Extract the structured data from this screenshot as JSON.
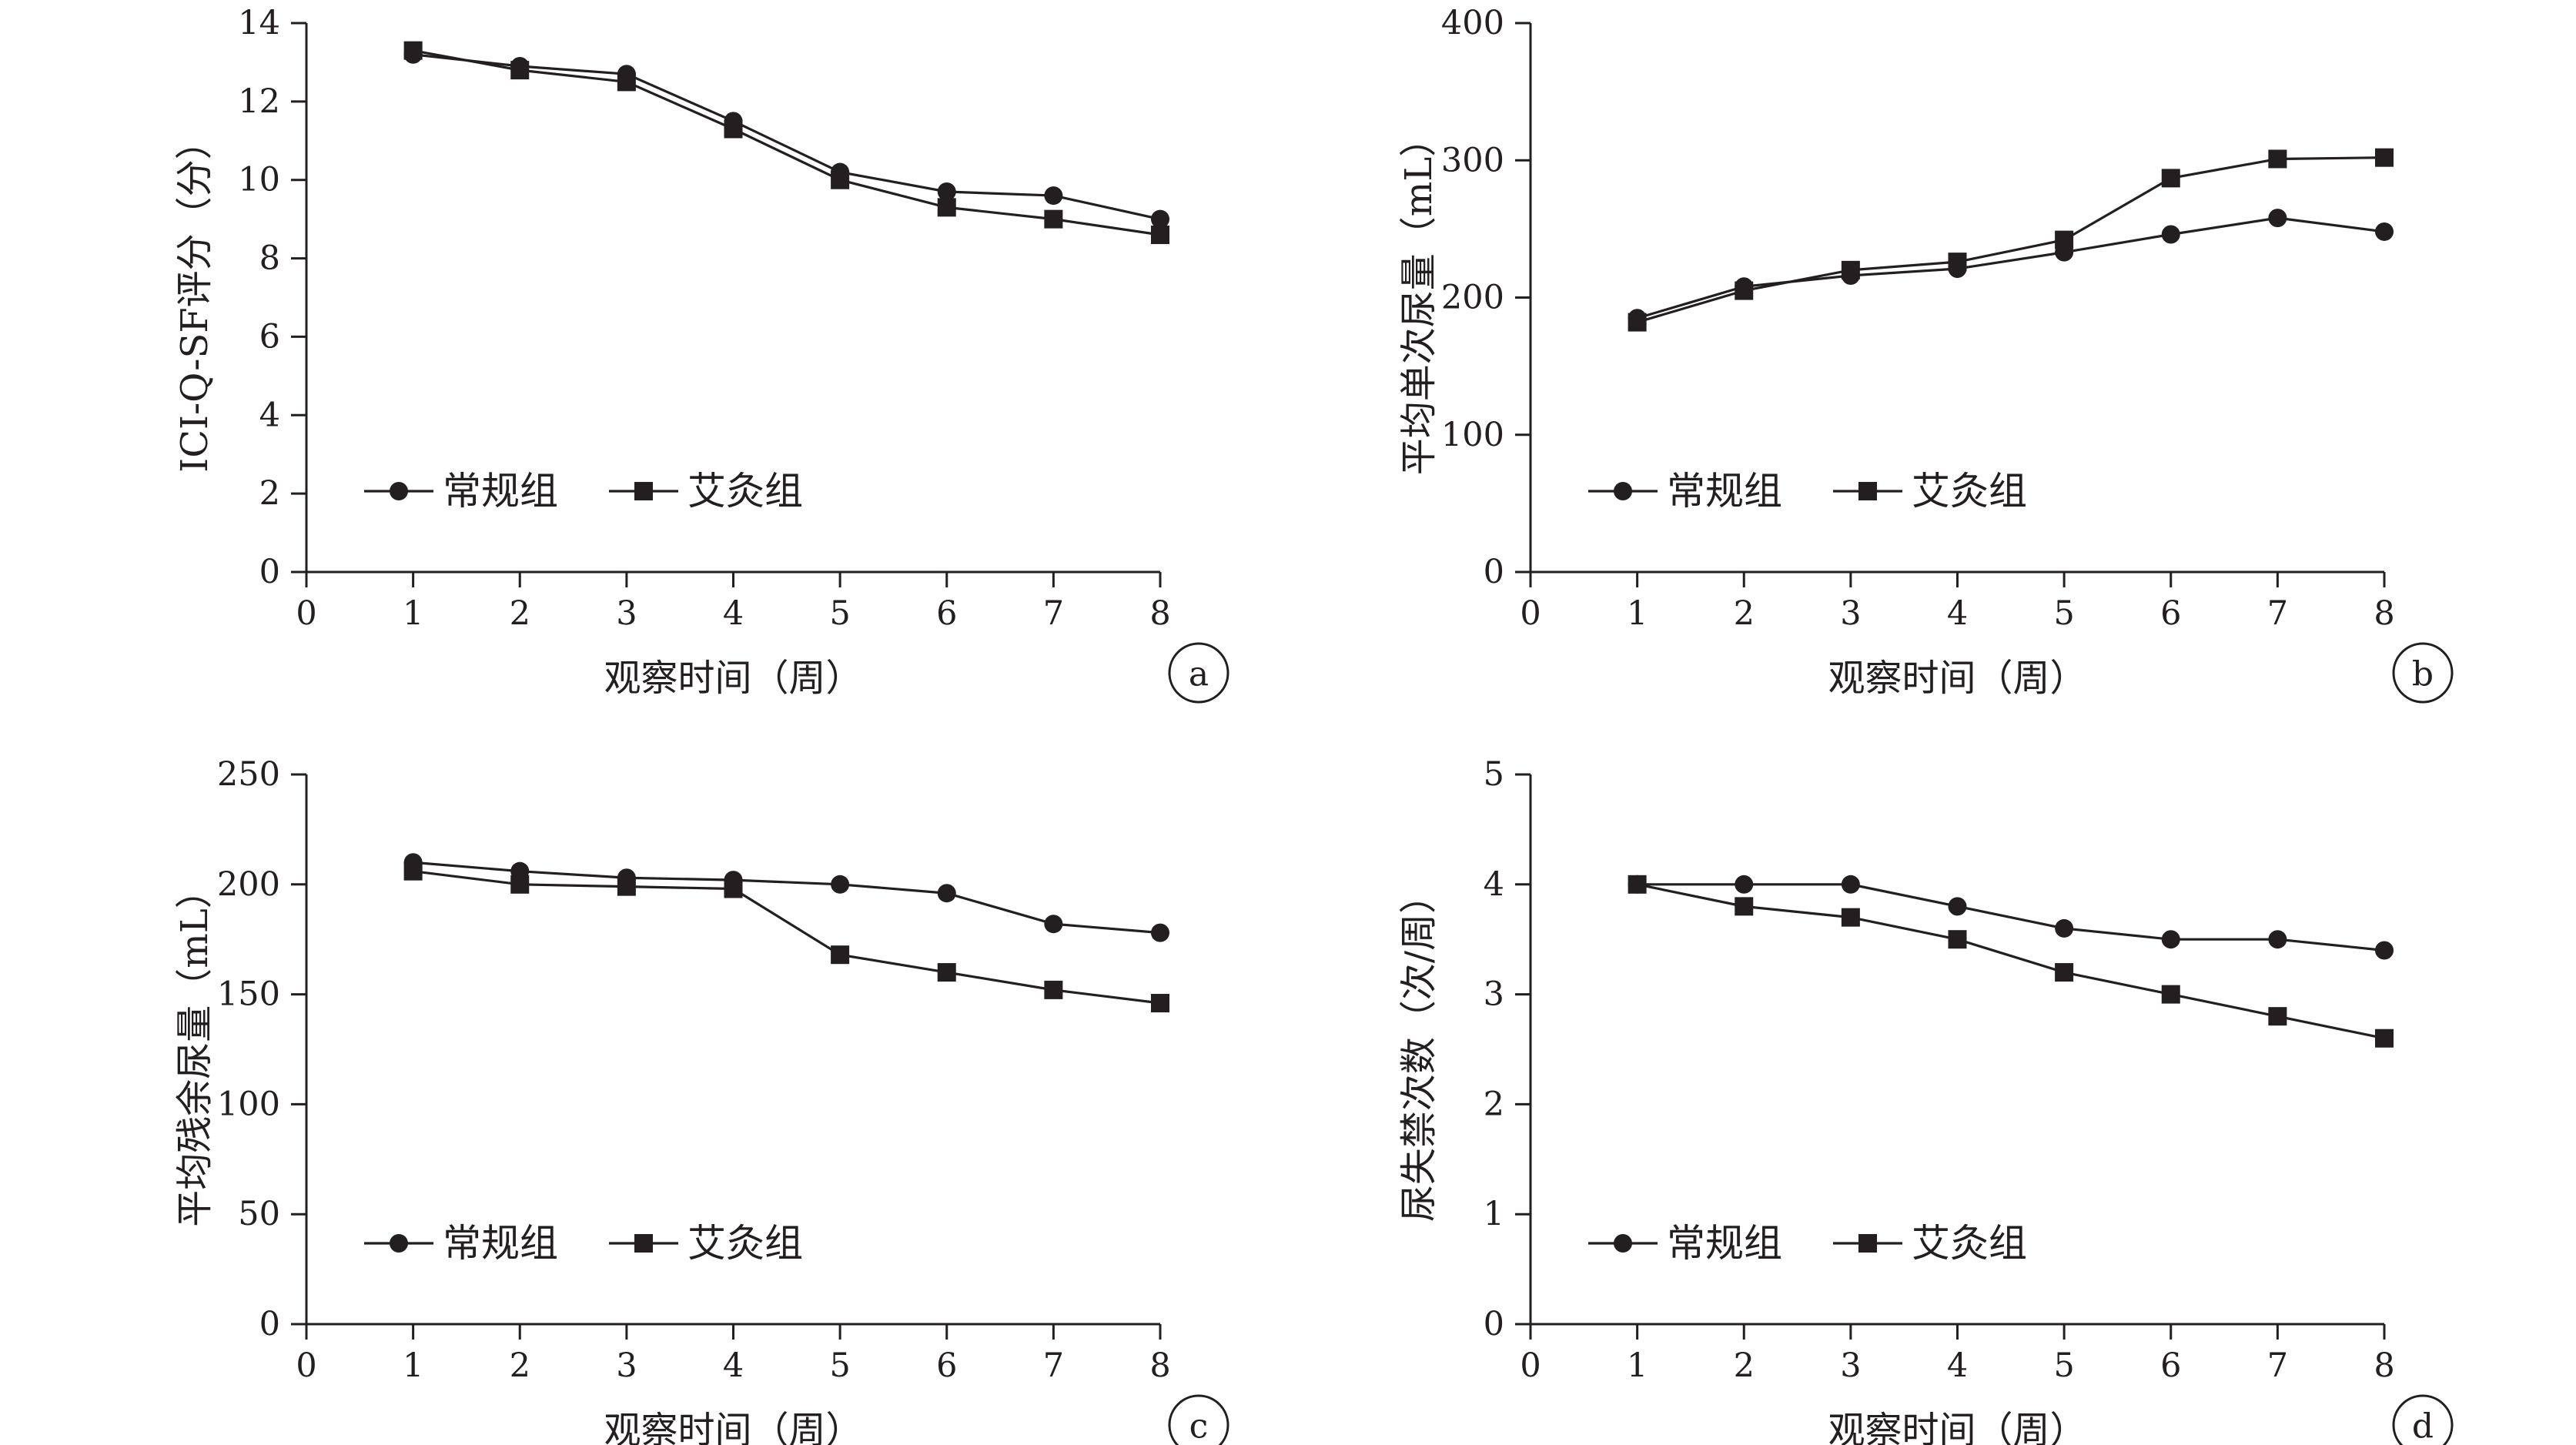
{
  "chart_data": [
    {
      "type": "line",
      "panel_label": "a",
      "x": [
        1,
        2,
        3,
        4,
        5,
        6,
        7,
        8
      ],
      "xlim": [
        0,
        8
      ],
      "x_ticks": [
        "0",
        "1",
        "2",
        "3",
        "4",
        "5",
        "6",
        "7",
        "8"
      ],
      "xlabel": "观察时间（周）",
      "ylabel": "ICI-Q-SF评分（分）",
      "ylim": [
        0,
        14
      ],
      "y_ticks": [
        "0",
        "2",
        "4",
        "6",
        "8",
        "10",
        "12",
        "14"
      ],
      "series": [
        {
          "name": "常规组",
          "marker": "circle",
          "values": [
            13.2,
            12.9,
            12.7,
            11.5,
            10.2,
            9.7,
            9.6,
            9.0
          ]
        },
        {
          "name": "艾灸组",
          "marker": "square",
          "values": [
            13.3,
            12.8,
            12.5,
            11.3,
            10.0,
            9.3,
            9.0,
            8.6
          ]
        }
      ],
      "legend": "bottom-left",
      "grid": false
    },
    {
      "type": "line",
      "panel_label": "b",
      "x": [
        1,
        2,
        3,
        4,
        5,
        6,
        7,
        8
      ],
      "xlim": [
        0,
        8
      ],
      "x_ticks": [
        "0",
        "1",
        "2",
        "3",
        "4",
        "5",
        "6",
        "7",
        "8"
      ],
      "xlabel": "观察时间（周）",
      "ylabel": "平均单次尿量（mL）",
      "ylim": [
        0,
        400
      ],
      "y_ticks": [
        "0",
        "100",
        "200",
        "300",
        "400"
      ],
      "series": [
        {
          "name": "常规组",
          "marker": "circle",
          "values": [
            185,
            208,
            216,
            221,
            233,
            246,
            258,
            248
          ]
        },
        {
          "name": "艾灸组",
          "marker": "square",
          "values": [
            182,
            205,
            220,
            226,
            242,
            287,
            301,
            302
          ]
        }
      ],
      "legend": "bottom-left",
      "grid": false
    },
    {
      "type": "line",
      "panel_label": "c",
      "x": [
        1,
        2,
        3,
        4,
        5,
        6,
        7,
        8
      ],
      "xlim": [
        0,
        8
      ],
      "x_ticks": [
        "0",
        "1",
        "2",
        "3",
        "4",
        "5",
        "6",
        "7",
        "8"
      ],
      "xlabel": "观察时间（周）",
      "ylabel": "平均残余尿量（mL）",
      "ylim": [
        0,
        250
      ],
      "y_ticks": [
        "0",
        "50",
        "100",
        "150",
        "200",
        "250"
      ],
      "series": [
        {
          "name": "常规组",
          "marker": "circle",
          "values": [
            210,
            206,
            203,
            202,
            200,
            196,
            182,
            178
          ]
        },
        {
          "name": "艾灸组",
          "marker": "square",
          "values": [
            206,
            200,
            199,
            198,
            168,
            160,
            152,
            146
          ]
        }
      ],
      "legend": "bottom-left",
      "grid": false
    },
    {
      "type": "line",
      "panel_label": "d",
      "x": [
        1,
        2,
        3,
        4,
        5,
        6,
        7,
        8
      ],
      "xlim": [
        0,
        8
      ],
      "x_ticks": [
        "0",
        "1",
        "2",
        "3",
        "4",
        "5",
        "6",
        "7",
        "8"
      ],
      "xlabel": "观察时间（周）",
      "ylabel": "尿失禁次数（次/周）",
      "ylim": [
        0,
        5
      ],
      "y_ticks": [
        "0",
        "1",
        "2",
        "3",
        "4",
        "5"
      ],
      "series": [
        {
          "name": "常规组",
          "marker": "circle",
          "values": [
            4.0,
            4.0,
            4.0,
            3.8,
            3.6,
            3.5,
            3.5,
            3.4
          ]
        },
        {
          "name": "艾灸组",
          "marker": "square",
          "values": [
            4.0,
            3.8,
            3.7,
            3.5,
            3.2,
            3.0,
            2.8,
            2.6
          ]
        }
      ],
      "legend": "bottom-left",
      "grid": false
    }
  ]
}
